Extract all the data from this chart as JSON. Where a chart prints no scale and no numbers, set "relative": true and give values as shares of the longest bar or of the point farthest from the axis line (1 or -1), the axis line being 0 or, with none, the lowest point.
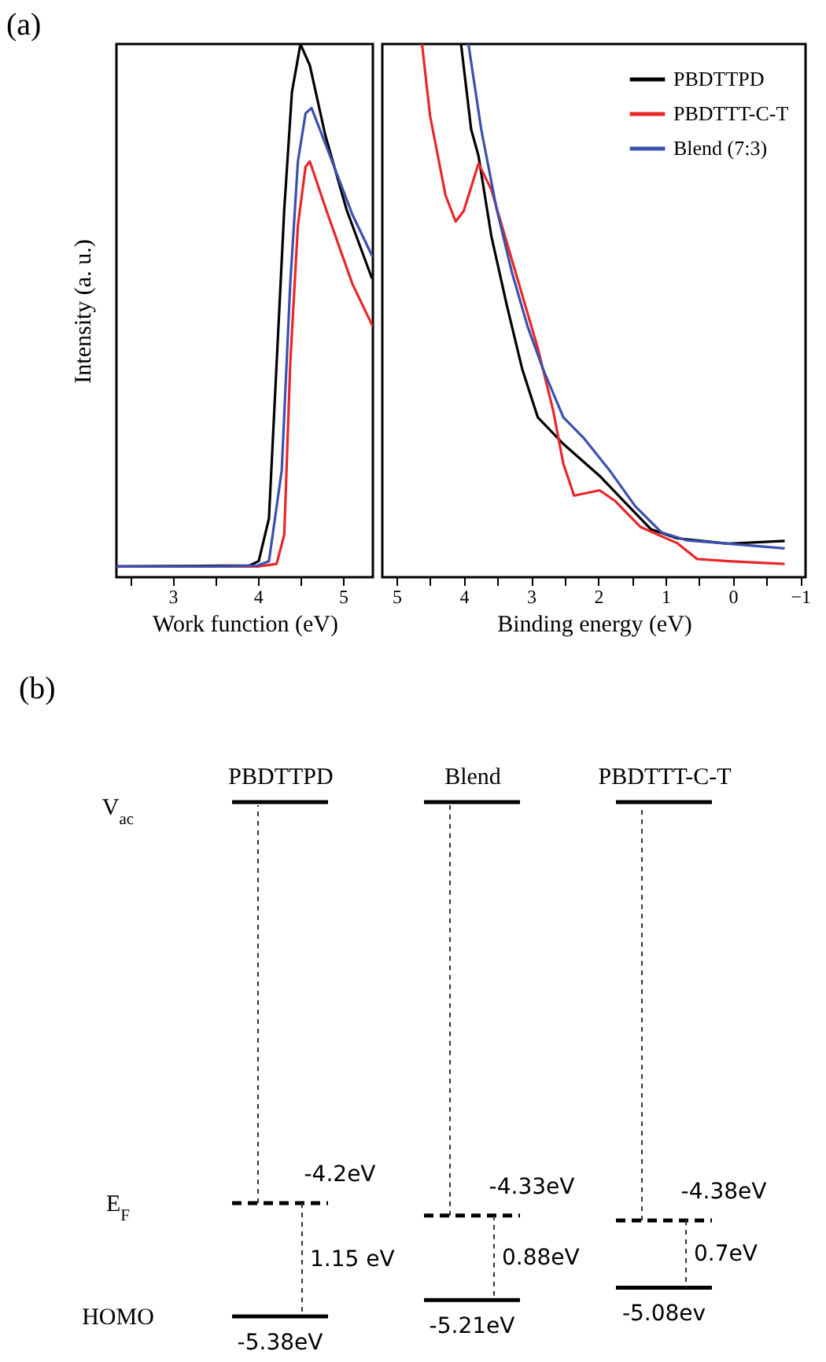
{
  "chart_data": [
    {
      "type": "line",
      "title": "(a)",
      "xlabel": "Work function (eV)",
      "ylabel": "Intensity (a. u.)",
      "relative": true,
      "tick_labels": "x",
      "xlim": [
        2.34,
        5.35
      ],
      "xticks": [
        {
          "value": 2.5,
          "label": null
        },
        3,
        {
          "value": 3.5,
          "label": null
        },
        4,
        {
          "value": 4.5,
          "label": null
        },
        5
      ],
      "series": [
        {
          "color": "#000000",
          "x": [
            2.34,
            3.9,
            4.01,
            4.13,
            4.22,
            4.31,
            4.4,
            4.5,
            4.61,
            4.79,
            5.04,
            5.34
          ],
          "values": [
            0.02,
            0.022,
            0.03,
            0.11,
            0.4,
            0.69,
            0.91,
            1.0,
            0.96,
            0.83,
            0.69,
            0.56
          ]
        },
        {
          "color": "#e8262a",
          "x": [
            2.34,
            4.0,
            4.22,
            4.31,
            4.38,
            4.47,
            4.56,
            4.61,
            4.8,
            5.11,
            5.35
          ],
          "values": [
            0.02,
            0.02,
            0.025,
            0.08,
            0.4,
            0.66,
            0.77,
            0.78,
            0.69,
            0.55,
            0.47
          ]
        },
        {
          "color": "#3a50b0",
          "x": [
            2.34,
            3.0,
            3.6,
            4.0,
            4.13,
            4.28,
            4.38,
            4.47,
            4.56,
            4.63,
            4.8,
            5.11,
            5.35
          ],
          "values": [
            0.02,
            0.02,
            0.02,
            0.022,
            0.03,
            0.2,
            0.55,
            0.78,
            0.87,
            0.88,
            0.81,
            0.68,
            0.6
          ]
        }
      ]
    },
    {
      "type": "line",
      "xlabel": "Binding energy (eV)",
      "relative": true,
      "tick_labels": "x",
      "legend": "top right",
      "xlim": [
        5.21,
        -1.08
      ],
      "xticks": [
        5,
        {
          "value": 4.5,
          "label": null
        },
        4,
        {
          "value": 3.5,
          "label": null
        },
        3,
        {
          "value": 2.5,
          "label": null
        },
        2,
        {
          "value": 1.5,
          "label": null
        },
        1,
        {
          "value": 0.5,
          "label": null
        },
        0,
        {
          "value": -0.5,
          "label": null
        },
        -1
      ],
      "series": [
        {
          "name": "PBDTTPD",
          "color": "#000000",
          "x": [
            4.04,
            3.89,
            3.78,
            3.59,
            3.36,
            3.13,
            2.9,
            2.52,
            1.98,
            1.6,
            1.22,
            0.83,
            0.07,
            -0.77
          ],
          "values": [
            1.0,
            0.84,
            0.79,
            0.64,
            0.51,
            0.39,
            0.3,
            0.25,
            0.19,
            0.14,
            0.09,
            0.073,
            0.063,
            0.068
          ]
        },
        {
          "name": "PBDTTT-C-T",
          "color": "#e8262a",
          "x": [
            4.62,
            4.5,
            4.27,
            4.12,
            4.0,
            3.78,
            3.59,
            3.36,
            3.13,
            2.9,
            2.67,
            2.52,
            2.36,
            1.98,
            1.75,
            1.37,
            0.83,
            0.53,
            0.07,
            -0.77
          ],
          "values": [
            1.0,
            0.865,
            0.716,
            0.667,
            0.687,
            0.776,
            0.727,
            0.628,
            0.529,
            0.43,
            0.312,
            0.213,
            0.153,
            0.163,
            0.143,
            0.094,
            0.064,
            0.034,
            0.03,
            0.025
          ]
        },
        {
          "name": "Blend (7:3)",
          "color": "#3a50b0",
          "x": [
            3.93,
            3.74,
            3.51,
            3.28,
            3.05,
            2.82,
            2.52,
            2.21,
            1.83,
            1.45,
            1.06,
            0.68,
            0.07,
            -0.77
          ],
          "values": [
            1.0,
            0.84,
            0.69,
            0.57,
            0.47,
            0.39,
            0.3,
            0.26,
            0.2,
            0.133,
            0.084,
            0.069,
            0.063,
            0.054
          ]
        }
      ]
    },
    {
      "type": "other",
      "title": "(b)",
      "categories": [
        "PBDTTPD",
        "Blend",
        "PBDTTT-C-T"
      ],
      "series": [
        {
          "name": "E$_{F}$",
          "color": "#000000",
          "line_style": "dashed",
          "values": [
            -4.2,
            -4.33,
            -4.38
          ],
          "value_labels": [
            "-4.2eV",
            "-4.33eV",
            "-4.38eV"
          ]
        },
        {
          "name": "HOMO",
          "color": "#000000",
          "line_style": "solid",
          "values": [
            -5.38,
            -5.21,
            -5.08
          ],
          "value_labels": [
            "-5.38eV",
            "-5.21eV",
            "-5.08ev"
          ]
        }
      ],
      "annotations": [
        "V$_{ac}$",
        "1.15 eV",
        "0.88eV",
        "0.7eV"
      ]
    }
  ]
}
